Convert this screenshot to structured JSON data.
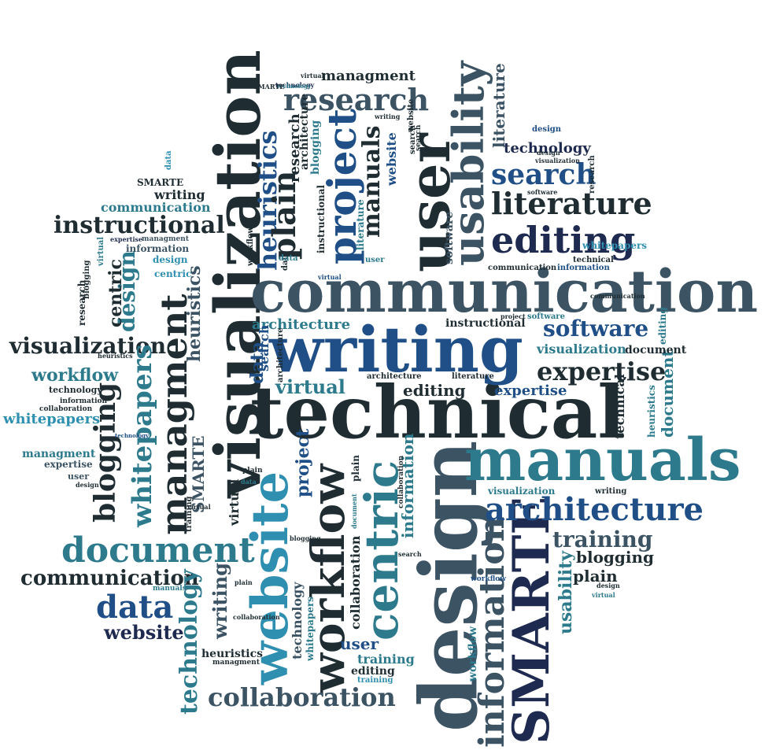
{
  "palette": {
    "dark": "#1f2d33",
    "slate": "#3c5364",
    "teal": "#2c7a8c",
    "blue": "#1f4f86",
    "navy": "#1e2a4f",
    "sky": "#2f8fb0"
  },
  "words": [
    {
      "text": "visualization",
      "color": "dark",
      "rotated": true
    },
    {
      "text": "communication",
      "color": "slate",
      "rotated": false
    },
    {
      "text": "technical",
      "color": "dark",
      "rotated": false
    },
    {
      "text": "writing",
      "color": "blue",
      "rotated": false
    },
    {
      "text": "design",
      "color": "slate",
      "rotated": true
    },
    {
      "text": "website",
      "color": "sky",
      "rotated": true
    },
    {
      "text": "manuals",
      "color": "teal",
      "rotated": false
    },
    {
      "text": "SMARTE",
      "color": "navy",
      "rotated": true
    },
    {
      "text": "workflow",
      "color": "dark",
      "rotated": true
    },
    {
      "text": "centric",
      "color": "teal",
      "rotated": true
    },
    {
      "text": "user",
      "color": "dark",
      "rotated": true
    },
    {
      "text": "usability",
      "color": "slate",
      "rotated": true
    },
    {
      "text": "project",
      "color": "blue",
      "rotated": true
    },
    {
      "text": "managment",
      "color": "dark",
      "rotated": true
    },
    {
      "text": "information",
      "color": "slate",
      "rotated": true
    },
    {
      "text": "editing",
      "color": "navy",
      "rotated": false
    },
    {
      "text": "literature",
      "color": "dark",
      "rotated": false
    },
    {
      "text": "search",
      "color": "blue",
      "rotated": false
    },
    {
      "text": "research",
      "color": "slate",
      "rotated": false
    },
    {
      "text": "document",
      "color": "teal",
      "rotated": false
    },
    {
      "text": "architecture",
      "color": "blue",
      "rotated": false
    },
    {
      "text": "expertise",
      "color": "dark",
      "rotated": false
    },
    {
      "text": "software",
      "color": "blue",
      "rotated": false
    },
    {
      "text": "data",
      "color": "blue",
      "rotated": false
    },
    {
      "text": "collaboration",
      "color": "slate",
      "rotated": false
    },
    {
      "text": "instructional",
      "color": "dark",
      "rotated": false
    },
    {
      "text": "visualization",
      "color": "dark",
      "rotated": false
    },
    {
      "text": "communication",
      "color": "dark",
      "rotated": false
    },
    {
      "text": "blogging",
      "color": "dark",
      "rotated": true
    },
    {
      "text": "whitepapers",
      "color": "teal",
      "rotated": true
    },
    {
      "text": "technology",
      "color": "teal",
      "rotated": true
    },
    {
      "text": "heuristics",
      "color": "blue",
      "rotated": true
    },
    {
      "text": "plain",
      "color": "dark",
      "rotated": true
    },
    {
      "text": "manuals",
      "color": "dark",
      "rotated": true
    },
    {
      "text": "training",
      "color": "slate",
      "rotated": false
    },
    {
      "text": "architecture",
      "color": "teal",
      "rotated": false
    },
    {
      "text": "virtual",
      "color": "teal",
      "rotated": false
    },
    {
      "text": "website",
      "color": "navy",
      "rotated": false
    },
    {
      "text": "workflow",
      "color": "teal",
      "rotated": false
    },
    {
      "text": "managment",
      "color": "teal",
      "rotated": false
    },
    {
      "text": "whitepapers",
      "color": "sky",
      "rotated": false
    },
    {
      "text": "technology",
      "color": "navy",
      "rotated": false
    },
    {
      "text": "blogging",
      "color": "dark",
      "rotated": false
    },
    {
      "text": "plain",
      "color": "dark",
      "rotated": false
    },
    {
      "text": "communication",
      "color": "teal",
      "rotated": false
    },
    {
      "text": "writing",
      "color": "dark",
      "rotated": false
    },
    {
      "text": "editing",
      "color": "dark",
      "rotated": false
    },
    {
      "text": "expertise",
      "color": "blue",
      "rotated": false
    },
    {
      "text": "visualization",
      "color": "teal",
      "rotated": false
    },
    {
      "text": "design",
      "color": "teal",
      "rotated": true
    },
    {
      "text": "centric",
      "color": "dark",
      "rotated": true
    },
    {
      "text": "heuristics",
      "color": "slate",
      "rotated": true
    },
    {
      "text": "search",
      "color": "blue",
      "rotated": true
    },
    {
      "text": "data",
      "color": "blue",
      "rotated": true
    },
    {
      "text": "SMARTE",
      "color": "slate",
      "rotated": true
    },
    {
      "text": "project",
      "color": "blue",
      "rotated": true
    },
    {
      "text": "information",
      "color": "teal",
      "rotated": true
    },
    {
      "text": "collaboration",
      "color": "dark",
      "rotated": true
    },
    {
      "text": "writing",
      "color": "slate",
      "rotated": true
    },
    {
      "text": "technology",
      "color": "slate",
      "rotated": true
    },
    {
      "text": "usability",
      "color": "teal",
      "rotated": true
    },
    {
      "text": "document",
      "color": "teal",
      "rotated": true
    },
    {
      "text": "managment",
      "color": "dark",
      "rotated": false
    },
    {
      "text": "user",
      "color": "blue",
      "rotated": false
    },
    {
      "text": "training",
      "color": "teal",
      "rotated": false
    },
    {
      "text": "editing",
      "color": "dark",
      "rotated": false
    },
    {
      "text": "heuristics",
      "color": "dark",
      "rotated": false
    },
    {
      "text": "website",
      "color": "blue",
      "rotated": true
    },
    {
      "text": "architecture",
      "color": "dark",
      "rotated": true
    },
    {
      "text": "blogging",
      "color": "teal",
      "rotated": true
    },
    {
      "text": "research",
      "color": "dark",
      "rotated": true
    },
    {
      "text": "technology",
      "color": "dark",
      "rotated": false
    },
    {
      "text": "information",
      "color": "dark",
      "rotated": false
    },
    {
      "text": "collaboration",
      "color": "dark",
      "rotated": false
    },
    {
      "text": "expertise",
      "color": "slate",
      "rotated": false
    },
    {
      "text": "user",
      "color": "slate",
      "rotated": false
    },
    {
      "text": "design",
      "color": "sky",
      "rotated": false
    },
    {
      "text": "centric",
      "color": "sky",
      "rotated": false
    },
    {
      "text": "information",
      "color": "slate",
      "rotated": false
    },
    {
      "text": "design",
      "color": "blue",
      "rotated": false
    },
    {
      "text": "managment",
      "color": "slate",
      "rotated": false
    },
    {
      "text": "expertise",
      "color": "navy",
      "rotated": false
    },
    {
      "text": "whitepapers",
      "color": "sky",
      "rotated": false
    },
    {
      "text": "technical",
      "color": "dark",
      "rotated": false
    },
    {
      "text": "information",
      "color": "blue",
      "rotated": false
    },
    {
      "text": "communication",
      "color": "dark",
      "rotated": false
    },
    {
      "text": "literature",
      "color": "dark",
      "rotated": false
    },
    {
      "text": "architecture",
      "color": "dark",
      "rotated": false
    },
    {
      "text": "instructional",
      "color": "dark",
      "rotated": false
    },
    {
      "text": "project",
      "color": "dark",
      "rotated": false
    },
    {
      "text": "software",
      "color": "teal",
      "rotated": false
    },
    {
      "text": "document",
      "color": "dark",
      "rotated": false
    },
    {
      "text": "visualization",
      "color": "teal",
      "rotated": false
    },
    {
      "text": "writing",
      "color": "dark",
      "rotated": false
    },
    {
      "text": "technical",
      "color": "dark",
      "rotated": true
    },
    {
      "text": "heuristics",
      "color": "teal",
      "rotated": true
    },
    {
      "text": "software",
      "color": "slate",
      "rotated": true
    },
    {
      "text": "workflow",
      "color": "teal",
      "rotated": true
    },
    {
      "text": "research",
      "color": "dark",
      "rotated": true
    },
    {
      "text": "instructional",
      "color": "dark",
      "rotated": true
    },
    {
      "text": "editing",
      "color": "teal",
      "rotated": true
    },
    {
      "text": "search",
      "color": "dark",
      "rotated": true
    },
    {
      "text": "plain",
      "color": "dark",
      "rotated": true
    },
    {
      "text": "virtual",
      "color": "dark",
      "rotated": true
    },
    {
      "text": "literature",
      "color": "teal",
      "rotated": true
    },
    {
      "text": "data",
      "color": "dark",
      "rotated": true
    },
    {
      "text": "training",
      "color": "dark",
      "rotated": true
    },
    {
      "text": "SMARTE",
      "color": "dark",
      "rotated": false
    },
    {
      "text": "plain",
      "color": "dark",
      "rotated": false
    },
    {
      "text": "literature",
      "color": "slate",
      "rotated": true
    },
    {
      "text": "technology",
      "color": "navy",
      "rotated": false
    },
    {
      "text": "managment",
      "color": "dark",
      "rotated": false
    },
    {
      "text": "research",
      "color": "dark",
      "rotated": true
    },
    {
      "text": "blogging",
      "color": "dark",
      "rotated": true
    },
    {
      "text": "workflow",
      "color": "dark",
      "rotated": true
    },
    {
      "text": "user",
      "color": "teal",
      "rotated": false
    },
    {
      "text": "virtual",
      "color": "teal",
      "rotated": true
    },
    {
      "text": "website",
      "color": "dark",
      "rotated": true
    },
    {
      "text": "search",
      "color": "dark",
      "rotated": true
    },
    {
      "text": "architecture",
      "color": "dark",
      "rotated": true
    },
    {
      "text": "technology",
      "color": "teal",
      "rotated": false
    },
    {
      "text": "whitepapers",
      "color": "teal",
      "rotated": true
    },
    {
      "text": "visualization",
      "color": "dark",
      "rotated": false
    },
    {
      "text": "virtual",
      "color": "dark",
      "rotated": false
    },
    {
      "text": "SMARTE",
      "color": "dark",
      "rotated": false
    },
    {
      "text": "blogging",
      "color": "dark",
      "rotated": false
    },
    {
      "text": "collaboration",
      "color": "dark",
      "rotated": true
    },
    {
      "text": "data",
      "color": "teal",
      "rotated": false
    },
    {
      "text": "design",
      "color": "dark",
      "rotated": false
    },
    {
      "text": "search",
      "color": "dark",
      "rotated": false
    },
    {
      "text": "heuristics",
      "color": "dark",
      "rotated": false
    },
    {
      "text": "technology",
      "color": "blue",
      "rotated": false
    },
    {
      "text": "manuals",
      "color": "teal",
      "rotated": false
    },
    {
      "text": "virtual",
      "color": "teal",
      "rotated": false
    },
    {
      "text": "design",
      "color": "dark",
      "rotated": false
    },
    {
      "text": "workflow",
      "color": "blue",
      "rotated": false
    },
    {
      "text": "collaboration",
      "color": "dark",
      "rotated": false
    },
    {
      "text": "training",
      "color": "sky",
      "rotated": false
    },
    {
      "text": "communication",
      "color": "dark",
      "rotated": false
    },
    {
      "text": "software",
      "color": "dark",
      "rotated": false
    },
    {
      "text": "writing",
      "color": "dark",
      "rotated": false
    },
    {
      "text": "design",
      "color": "dark",
      "rotated": false
    },
    {
      "text": "virtual",
      "color": "dark",
      "rotated": false
    },
    {
      "text": "document",
      "color": "teal",
      "rotated": true
    },
    {
      "text": "data",
      "color": "teal",
      "rotated": false
    },
    {
      "text": "plain",
      "color": "dark",
      "rotated": false
    },
    {
      "text": "virtual",
      "color": "blue",
      "rotated": false
    },
    {
      "text": "data",
      "color": "sky",
      "rotated": true
    }
  ]
}
